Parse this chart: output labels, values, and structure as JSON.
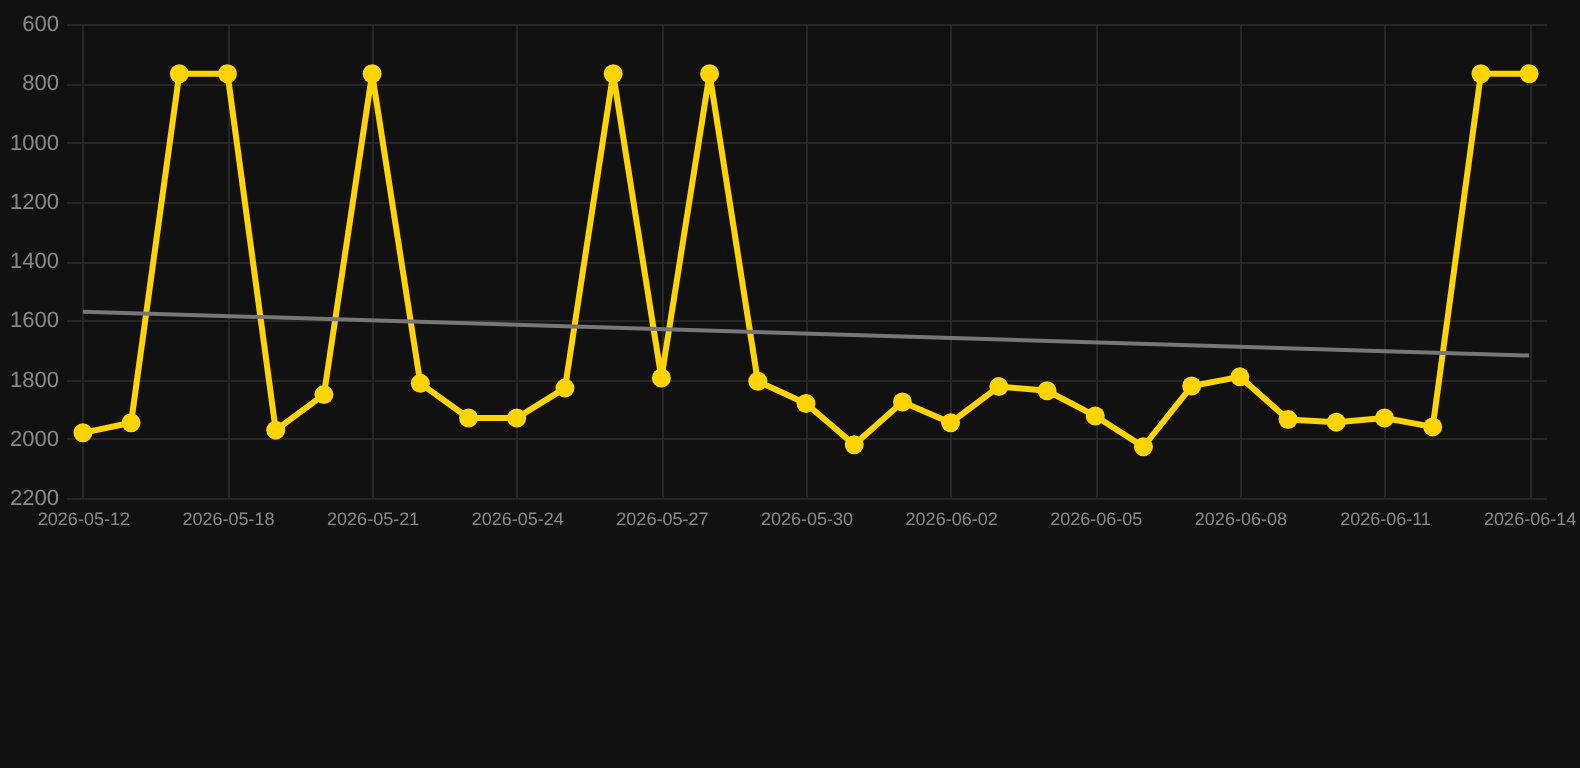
{
  "chart_data": {
    "type": "line",
    "categories": [
      "2026-05-12",
      null,
      null,
      "2026-05-18",
      null,
      null,
      "2026-05-21",
      null,
      null,
      "2026-05-24",
      null,
      null,
      "2026-05-27",
      null,
      null,
      "2026-05-30",
      null,
      null,
      "2026-06-02",
      null,
      null,
      "2026-06-05",
      null,
      null,
      "2026-06-08",
      null,
      null,
      "2026-06-11",
      null,
      null,
      "2026-06-14"
    ],
    "series": [
      {
        "color": "#ffd400",
        "values": [
          1980,
          1946,
          768,
          768,
          1971,
          1851,
          768,
          1813,
          1930,
          1930,
          1829,
          768,
          1795,
          768,
          1806,
          1881,
          2020,
          1876,
          1946,
          1824,
          1838,
          1923,
          2027,
          1822,
          1791,
          1935,
          1944,
          1930,
          1960,
          768,
          768
        ]
      },
      {
        "type": "line",
        "color": "#777777",
        "marker": "none",
        "values": [
          1571,
          null,
          null,
          null,
          null,
          null,
          null,
          null,
          null,
          null,
          null,
          null,
          null,
          null,
          null,
          null,
          null,
          null,
          null,
          null,
          null,
          null,
          null,
          null,
          null,
          null,
          null,
          null,
          null,
          null,
          1719
        ]
      }
    ],
    "ylim": [
      2200,
      600
    ],
    "yticks": [
      600,
      800,
      1000,
      1200,
      1400,
      1600,
      1800,
      2000,
      2200
    ],
    "grid": true,
    "marker": "circle",
    "line_style": "solid"
  }
}
